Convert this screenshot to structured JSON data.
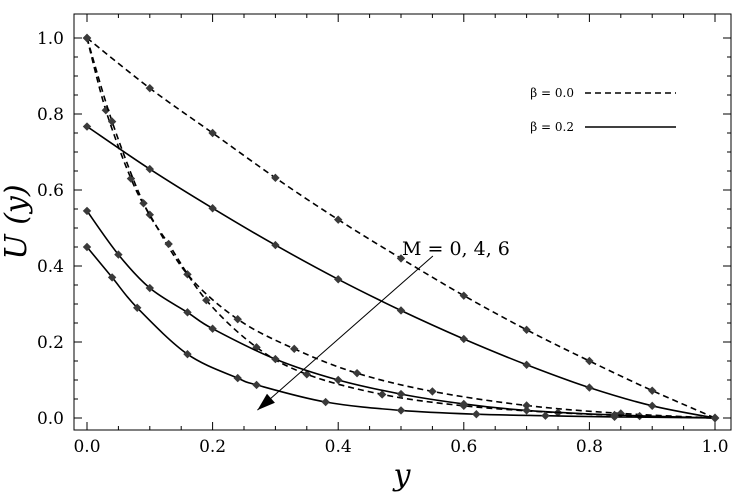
{
  "chart_data": {
    "type": "line",
    "xlabel": "y",
    "ylabel": "U (y)",
    "xlim": [
      0.0,
      1.0
    ],
    "ylim": [
      0.0,
      1.0
    ],
    "x_ticks": [
      "0.0",
      "0.2",
      "0.4",
      "0.6",
      "0.8",
      "1.0"
    ],
    "y_ticks": [
      "0.0",
      "0.2",
      "0.4",
      "0.6",
      "0.8",
      "1.0"
    ],
    "grid": false,
    "legend_position": "top-right",
    "legend": [
      {
        "label": "β = 0.0",
        "style": "dashed"
      },
      {
        "label": "β = 0.2",
        "style": "solid"
      }
    ],
    "annotation": {
      "text": "M = 0, 4, 6",
      "arrow_from": [
        0.55,
        0.4
      ],
      "arrow_to": [
        0.265,
        0.005
      ]
    },
    "series": [
      {
        "style": "dashed",
        "marker": "diamond",
        "parameters": {
          "beta": 0.0,
          "M": 0
        },
        "points": [
          [
            0.0,
            1.0
          ],
          [
            0.1,
            0.868
          ],
          [
            0.2,
            0.75
          ],
          [
            0.3,
            0.632
          ],
          [
            0.4,
            0.522
          ],
          [
            0.5,
            0.42
          ],
          [
            0.6,
            0.322
          ],
          [
            0.7,
            0.232
          ],
          [
            0.8,
            0.15
          ],
          [
            0.9,
            0.072
          ],
          [
            1.0,
            0.0
          ]
        ]
      },
      {
        "style": "dashed",
        "marker": "diamond",
        "parameters": {
          "beta": 0.0,
          "M": 4
        },
        "points": [
          [
            0.0,
            1.0
          ],
          [
            0.03,
            0.81
          ],
          [
            0.07,
            0.63
          ],
          [
            0.1,
            0.535
          ],
          [
            0.16,
            0.378
          ],
          [
            0.24,
            0.26
          ],
          [
            0.33,
            0.182
          ],
          [
            0.43,
            0.118
          ],
          [
            0.55,
            0.07
          ],
          [
            0.7,
            0.033
          ],
          [
            0.85,
            0.012
          ],
          [
            1.0,
            0.0
          ]
        ]
      },
      {
        "style": "dashed",
        "marker": "diamond",
        "parameters": {
          "beta": 0.0,
          "M": 6
        },
        "points": [
          [
            0.0,
            1.0
          ],
          [
            0.04,
            0.78
          ],
          [
            0.09,
            0.565
          ],
          [
            0.13,
            0.458
          ],
          [
            0.19,
            0.31
          ],
          [
            0.27,
            0.186
          ],
          [
            0.35,
            0.115
          ],
          [
            0.47,
            0.062
          ],
          [
            0.6,
            0.032
          ],
          [
            0.75,
            0.014
          ],
          [
            0.88,
            0.005
          ],
          [
            1.0,
            0.0
          ]
        ]
      },
      {
        "style": "solid",
        "marker": "diamond",
        "parameters": {
          "beta": 0.2,
          "M": 0
        },
        "points": [
          [
            0.0,
            0.767
          ],
          [
            0.1,
            0.655
          ],
          [
            0.2,
            0.552
          ],
          [
            0.3,
            0.455
          ],
          [
            0.4,
            0.365
          ],
          [
            0.5,
            0.283
          ],
          [
            0.6,
            0.208
          ],
          [
            0.7,
            0.14
          ],
          [
            0.8,
            0.08
          ],
          [
            0.9,
            0.032
          ],
          [
            1.0,
            0.0
          ]
        ]
      },
      {
        "style": "solid",
        "marker": "diamond",
        "parameters": {
          "beta": 0.2,
          "M": 4
        },
        "points": [
          [
            0.0,
            0.545
          ],
          [
            0.05,
            0.43
          ],
          [
            0.1,
            0.342
          ],
          [
            0.16,
            0.278
          ],
          [
            0.2,
            0.235
          ],
          [
            0.3,
            0.155
          ],
          [
            0.4,
            0.1
          ],
          [
            0.5,
            0.063
          ],
          [
            0.6,
            0.037
          ],
          [
            0.7,
            0.02
          ],
          [
            0.84,
            0.008
          ],
          [
            1.0,
            0.0
          ]
        ]
      },
      {
        "style": "solid",
        "marker": "diamond",
        "parameters": {
          "beta": 0.2,
          "M": 6
        },
        "points": [
          [
            0.0,
            0.45
          ],
          [
            0.04,
            0.37
          ],
          [
            0.08,
            0.29
          ],
          [
            0.16,
            0.168
          ],
          [
            0.24,
            0.105
          ],
          [
            0.27,
            0.087
          ],
          [
            0.38,
            0.042
          ],
          [
            0.5,
            0.02
          ],
          [
            0.62,
            0.01
          ],
          [
            0.73,
            0.006
          ],
          [
            0.84,
            0.003
          ],
          [
            1.0,
            0.0
          ]
        ]
      }
    ]
  }
}
